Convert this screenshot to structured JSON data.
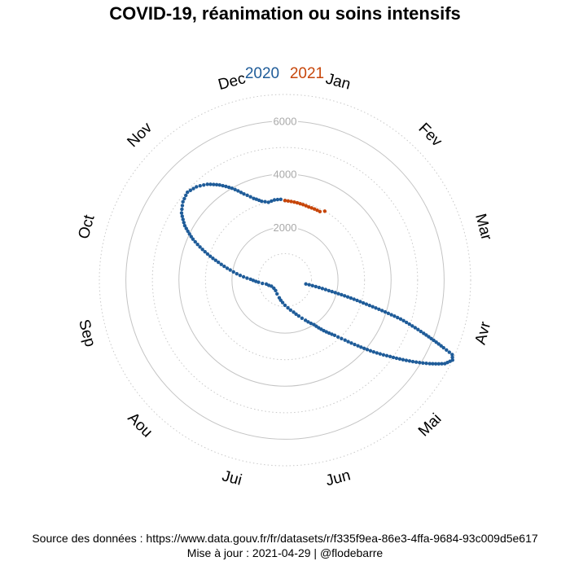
{
  "title": "COVID-19, réanimation ou soins intensifs",
  "footer": {
    "source": "Source des données : https://www.data.gouv.fr/fr/datasets/r/f335f9ea-86e3-4ffa-9684-93c009d5e617",
    "update": "Mise à jour : 2021-04-29 | @flodebarre"
  },
  "chart_data": {
    "type": "scatter",
    "coordinate_system": "polar",
    "title": "COVID-19, réanimation ou soins intensifs",
    "angle_axis": {
      "unit": "month",
      "labels": [
        "Jan",
        "Fev",
        "Mar",
        "Avr",
        "Mai",
        "Jun",
        "Jui",
        "Aou",
        "Sep",
        "Oct",
        "Nov",
        "Dec"
      ],
      "direction": "clockwise",
      "start": "top"
    },
    "radial_axis": {
      "ticks": [
        2000,
        4000,
        6000
      ],
      "range": [
        0,
        7000
      ],
      "grid": true
    },
    "legend": {
      "position": "top",
      "entries": [
        "2020",
        "2021"
      ]
    },
    "series": [
      {
        "name": "2020",
        "color": "#1f5c99",
        "points": [
          [
            3.35,
            800
          ],
          [
            3.45,
            1700
          ],
          [
            3.55,
            3200
          ],
          [
            3.62,
            4600
          ],
          [
            3.7,
            5600
          ],
          [
            3.77,
            6500
          ],
          [
            3.8,
            6900
          ],
          [
            3.85,
            7000
          ],
          [
            3.92,
            6800
          ],
          [
            4.0,
            6300
          ],
          [
            4.1,
            5600
          ],
          [
            4.2,
            4900
          ],
          [
            4.3,
            4300
          ],
          [
            4.4,
            3700
          ],
          [
            4.5,
            3200
          ],
          [
            4.6,
            2800
          ],
          [
            4.75,
            2400
          ],
          [
            4.9,
            2000
          ],
          [
            5.1,
            1700
          ],
          [
            5.3,
            1450
          ],
          [
            5.5,
            1250
          ],
          [
            5.8,
            1050
          ],
          [
            6.2,
            850
          ],
          [
            6.6,
            700
          ],
          [
            7.0,
            600
          ],
          [
            7.4,
            530
          ],
          [
            7.8,
            520
          ],
          [
            8.2,
            560
          ],
          [
            8.6,
            720
          ],
          [
            8.85,
            1000
          ],
          [
            9.05,
            1300
          ],
          [
            9.2,
            1700
          ],
          [
            9.35,
            2100
          ],
          [
            9.5,
            2600
          ],
          [
            9.65,
            3200
          ],
          [
            9.8,
            3800
          ],
          [
            9.95,
            4300
          ],
          [
            10.1,
            4650
          ],
          [
            10.25,
            4850
          ],
          [
            10.4,
            4950
          ],
          [
            10.55,
            4850
          ],
          [
            10.7,
            4650
          ],
          [
            10.85,
            4350
          ],
          [
            11.0,
            4000
          ],
          [
            11.15,
            3600
          ],
          [
            11.3,
            3300
          ],
          [
            11.45,
            3100
          ],
          [
            11.6,
            3000
          ],
          [
            11.75,
            3050
          ],
          [
            11.9,
            3050
          ],
          [
            12.0,
            3000
          ]
        ]
      },
      {
        "name": "2021",
        "color": "#c7460a",
        "points": [
          [
            0.0,
            3000
          ],
          [
            0.3,
            2950
          ],
          [
            0.6,
            2900
          ],
          [
            0.9,
            2900
          ],
          [
            1.0,
            3000
          ]
        ]
      }
    ]
  }
}
